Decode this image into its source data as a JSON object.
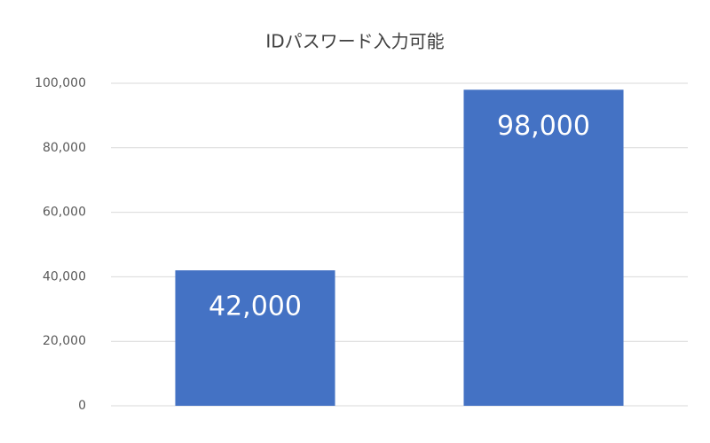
{
  "chart_data": {
    "type": "bar",
    "title": "IDパスワード入力可能",
    "categories": [
      null,
      null
    ],
    "values": [
      42000,
      98000
    ],
    "value_labels": [
      "42,000",
      "98,000"
    ],
    "color": "#4472c4",
    "ylim": [
      0,
      100000
    ],
    "yticks": [
      0,
      {
        "value": 20000,
        "label": "20,000"
      },
      {
        "value": 40000,
        "label": "40,000"
      },
      {
        "value": 60000,
        "label": "60,000"
      },
      {
        "value": 80000,
        "label": "80,000"
      },
      {
        "value": 100000,
        "label": "100,000"
      }
    ],
    "grid": true
  }
}
